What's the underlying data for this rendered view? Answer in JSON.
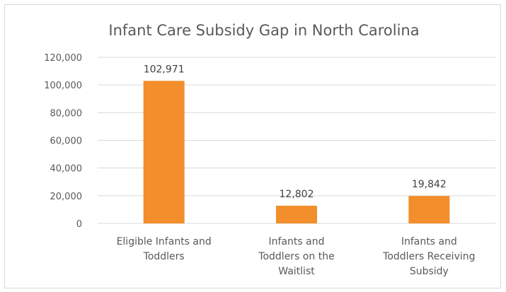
{
  "chart_data": {
    "type": "bar",
    "title": "Infant Care Subsidy Gap in North Carolina",
    "categories": [
      [
        "Eligible Infants and",
        "Toddlers"
      ],
      [
        "Infants and",
        "Toddlers on the",
        "Waitlist"
      ],
      [
        "Infants and",
        "Toddlers Receiving",
        "Subsidy"
      ]
    ],
    "values": [
      102971,
      12802,
      19842
    ],
    "data_labels": [
      "102,971",
      "12,802",
      "19,842"
    ],
    "ylim": [
      0,
      120000
    ],
    "yticks": [
      0,
      20000,
      40000,
      60000,
      80000,
      100000,
      120000
    ],
    "ytick_labels": [
      "0",
      "20,000",
      "40,000",
      "60,000",
      "80,000",
      "100,000",
      "120,000"
    ],
    "xlabel": "",
    "ylabel": "",
    "grid": true,
    "legend": "none",
    "bar_color": "#f28e2b",
    "gridline_color": "#d9d9d9"
  }
}
